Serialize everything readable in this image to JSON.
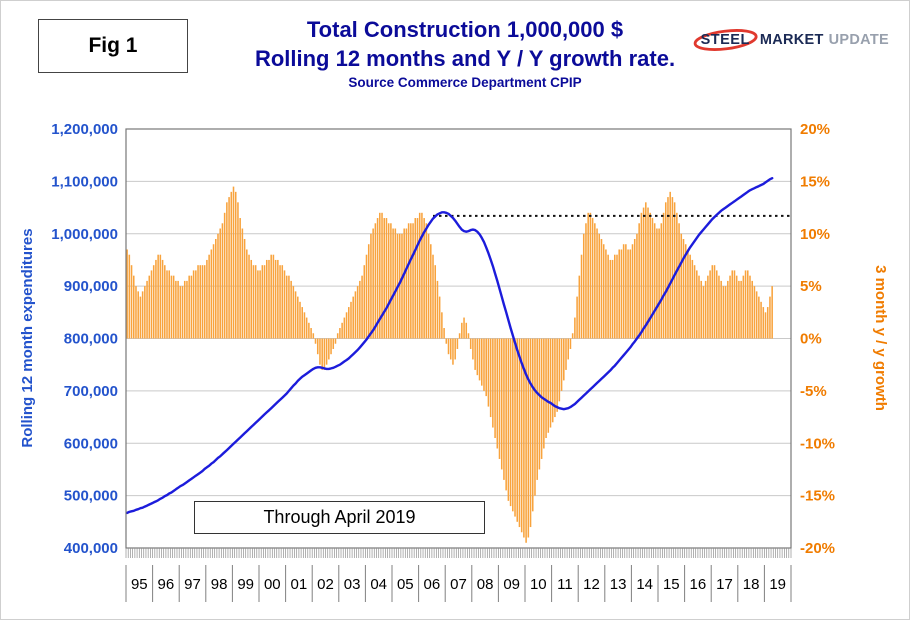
{
  "fig_label": "Fig 1",
  "title_line1": "Total Construction 1,000,000 $",
  "title_line2": "Rolling 12 months and Y / Y growth rate.",
  "subtitle": "Source Commerce Department CPIP",
  "logo": {
    "steel": "STEEL",
    "market": "MARKET",
    "update": "UPDATE",
    "swoosh_color": "#e0392e"
  },
  "annotation": "Through April 2019",
  "left_axis": {
    "label": "Rolling 12 month expenditures",
    "color": "#2353cc",
    "ticks": [
      "1,200,000",
      "1,100,000",
      "1,000,000",
      "900,000",
      "800,000",
      "700,000",
      "600,000",
      "500,000",
      "400,000"
    ]
  },
  "right_axis": {
    "label": "3 month y / y growth",
    "color": "#f07c00",
    "ticks": [
      "20%",
      "15%",
      "10%",
      "5%",
      "0%",
      "-5%",
      "-10%",
      "-15%",
      "-20%"
    ]
  },
  "x_axis": {
    "years": [
      "95",
      "96",
      "97",
      "98",
      "99",
      "00",
      "01",
      "02",
      "03",
      "04",
      "05",
      "06",
      "07",
      "08",
      "09",
      "10",
      "11",
      "12",
      "13",
      "14",
      "15",
      "16",
      "17",
      "18",
      "19"
    ]
  },
  "chart_data": {
    "type": "combo",
    "title": "Total Construction 1,000,000 $ — Rolling 12 months and Y / Y growth rate",
    "x_frequency": "monthly",
    "x_range": [
      "1995-01",
      "2019-12"
    ],
    "data_through": "2019-04",
    "left_ylim": [
      400000,
      1200000
    ],
    "right_ylim": [
      -20,
      20
    ],
    "grid": "horizontal",
    "reference_line": {
      "axis": "left",
      "value": 1034000,
      "start_index": 138,
      "style": "dotted",
      "color": "#111111"
    },
    "series": [
      {
        "name": "Rolling 12 month expenditures",
        "type": "line",
        "axis": "left",
        "color": "#1c1cdb",
        "values": [
          467000,
          469000,
          470000,
          471000,
          473000,
          474000,
          476000,
          477000,
          479000,
          481000,
          483000,
          485000,
          487000,
          489000,
          491000,
          494000,
          496000,
          499000,
          501000,
          504000,
          506000,
          509000,
          512000,
          515000,
          518000,
          520000,
          523000,
          526000,
          529000,
          532000,
          535000,
          538000,
          541000,
          544000,
          547000,
          551000,
          554000,
          557000,
          561000,
          564000,
          568000,
          572000,
          575000,
          579000,
          583000,
          587000,
          591000,
          595000,
          599000,
          603000,
          607000,
          611000,
          615000,
          619000,
          623000,
          627000,
          631000,
          635000,
          639000,
          643000,
          647000,
          651000,
          655000,
          659000,
          663000,
          667000,
          671000,
          675000,
          679000,
          683000,
          687000,
          691000,
          695000,
          700000,
          705000,
          710000,
          714000,
          719000,
          723000,
          727000,
          730000,
          733000,
          736000,
          739000,
          742000,
          744000,
          745000,
          745000,
          744000,
          743000,
          742000,
          742000,
          743000,
          744000,
          746000,
          748000,
          750000,
          753000,
          756000,
          759000,
          762000,
          766000,
          770000,
          774000,
          778000,
          783000,
          788000,
          793000,
          798000,
          804000,
          810000,
          816000,
          823000,
          830000,
          837000,
          844000,
          851000,
          858000,
          866000,
          874000,
          882000,
          890000,
          898000,
          906000,
          915000,
          924000,
          933000,
          942000,
          951000,
          960000,
          969000,
          978000,
          987000,
          995000,
          1003000,
          1010000,
          1017000,
          1023000,
          1029000,
          1033000,
          1037000,
          1039000,
          1041000,
          1041000,
          1040000,
          1038000,
          1034000,
          1030000,
          1025000,
          1019000,
          1013000,
          1008000,
          1005000,
          1004000,
          1005000,
          1007000,
          1008000,
          1007000,
          1004000,
          999000,
          992000,
          984000,
          974000,
          963000,
          951000,
          938000,
          924000,
          910000,
          895000,
          880000,
          865000,
          850000,
          835000,
          820000,
          806000,
          792000,
          778000,
          765000,
          753000,
          742000,
          731000,
          722000,
          714000,
          707000,
          701000,
          696000,
          692000,
          688000,
          685000,
          682000,
          679000,
          677000,
          674000,
          671000,
          669000,
          667000,
          666000,
          665000,
          666000,
          667000,
          669000,
          672000,
          675000,
          679000,
          683000,
          687000,
          691000,
          695000,
          699000,
          703000,
          707000,
          711000,
          715000,
          719000,
          723000,
          727000,
          731000,
          735000,
          739000,
          744000,
          748000,
          753000,
          758000,
          763000,
          768000,
          773000,
          778000,
          783000,
          789000,
          794000,
          800000,
          806000,
          812000,
          819000,
          825000,
          832000,
          839000,
          846000,
          853000,
          860000,
          867000,
          874000,
          882000,
          889000,
          897000,
          905000,
          913000,
          921000,
          929000,
          937000,
          945000,
          953000,
          960000,
          967000,
          974000,
          980000,
          986000,
          992000,
          998000,
          1003000,
          1008000,
          1013000,
          1018000,
          1023000,
          1028000,
          1032000,
          1036000,
          1040000,
          1044000,
          1047000,
          1050000,
          1053000,
          1056000,
          1059000,
          1062000,
          1065000,
          1068000,
          1071000,
          1074000,
          1077000,
          1080000,
          1083000,
          1085000,
          1087000,
          1089000,
          1091000,
          1093000,
          1095000,
          1098000,
          1101000,
          1104000,
          1106000
        ]
      },
      {
        "name": "3 month y / y growth",
        "type": "bar",
        "axis": "right",
        "color": "#f8a33d",
        "values": [
          8.5,
          8.0,
          7.0,
          6.0,
          5.0,
          4.5,
          4.0,
          4.5,
          5.0,
          5.5,
          6.0,
          6.5,
          7.0,
          7.5,
          8.0,
          8.0,
          7.5,
          7.0,
          6.5,
          6.5,
          6.0,
          6.0,
          5.5,
          5.5,
          5.0,
          5.0,
          5.5,
          5.5,
          6.0,
          6.0,
          6.5,
          6.5,
          7.0,
          7.0,
          7.0,
          7.0,
          7.5,
          8.0,
          8.5,
          9.0,
          9.5,
          10.0,
          10.5,
          11.0,
          12.0,
          13.0,
          13.5,
          14.0,
          14.5,
          14.0,
          13.0,
          11.5,
          10.5,
          9.5,
          8.5,
          8.0,
          7.5,
          7.0,
          7.0,
          6.5,
          6.5,
          7.0,
          7.0,
          7.5,
          7.5,
          8.0,
          8.0,
          7.5,
          7.5,
          7.0,
          7.0,
          6.5,
          6.0,
          6.0,
          5.5,
          5.0,
          4.5,
          4.0,
          3.5,
          3.0,
          2.5,
          2.0,
          1.5,
          1.0,
          0.5,
          -0.5,
          -1.5,
          -2.5,
          -3.0,
          -3.0,
          -2.5,
          -2.0,
          -1.5,
          -1.0,
          -0.5,
          0.5,
          1.0,
          1.5,
          2.0,
          2.5,
          3.0,
          3.5,
          4.0,
          4.5,
          5.0,
          5.5,
          6.0,
          7.0,
          8.0,
          9.0,
          10.0,
          10.5,
          11.0,
          11.5,
          12.0,
          12.0,
          11.5,
          11.5,
          11.0,
          11.0,
          10.5,
          10.5,
          10.0,
          10.0,
          10.0,
          10.5,
          10.5,
          11.0,
          11.0,
          11.0,
          11.5,
          11.5,
          12.0,
          12.0,
          11.5,
          11.0,
          10.0,
          9.0,
          8.0,
          7.0,
          5.5,
          4.0,
          2.5,
          1.0,
          -0.5,
          -1.5,
          -2.0,
          -2.5,
          -2.0,
          -1.0,
          0.5,
          1.5,
          2.0,
          1.5,
          0.5,
          -1.0,
          -2.0,
          -3.0,
          -3.5,
          -4.0,
          -4.5,
          -5.0,
          -5.5,
          -6.5,
          -7.5,
          -8.5,
          -9.5,
          -10.5,
          -11.5,
          -12.5,
          -13.5,
          -14.5,
          -15.5,
          -16.0,
          -16.5,
          -17.0,
          -17.5,
          -18.0,
          -18.5,
          -19.0,
          -19.5,
          -19.0,
          -18.0,
          -16.5,
          -15.0,
          -13.5,
          -12.5,
          -11.5,
          -10.5,
          -9.5,
          -9.0,
          -8.5,
          -8.0,
          -7.5,
          -7.0,
          -6.0,
          -5.0,
          -4.0,
          -3.0,
          -2.0,
          -1.0,
          0.5,
          2.0,
          4.0,
          6.0,
          8.0,
          10.0,
          11.0,
          12.0,
          12.0,
          11.5,
          11.0,
          10.5,
          10.0,
          9.5,
          9.0,
          8.5,
          8.0,
          7.5,
          7.5,
          8.0,
          8.0,
          8.5,
          8.5,
          9.0,
          9.0,
          8.5,
          8.5,
          9.0,
          9.5,
          10.0,
          11.0,
          12.0,
          12.5,
          13.0,
          12.5,
          12.0,
          11.5,
          11.0,
          10.5,
          10.5,
          11.0,
          12.0,
          13.0,
          13.5,
          14.0,
          13.5,
          13.0,
          12.0,
          11.0,
          10.0,
          9.5,
          9.0,
          8.5,
          8.0,
          7.5,
          7.0,
          6.5,
          6.0,
          5.5,
          5.0,
          5.5,
          6.0,
          6.5,
          7.0,
          7.0,
          6.5,
          6.0,
          5.5,
          5.0,
          5.0,
          5.5,
          6.0,
          6.5,
          6.5,
          6.0,
          5.5,
          5.5,
          6.0,
          6.5,
          6.5,
          6.0,
          5.5,
          5.0,
          4.5,
          4.0,
          3.5,
          3.0,
          2.5,
          3.0,
          4.0,
          5.0
        ]
      }
    ]
  }
}
